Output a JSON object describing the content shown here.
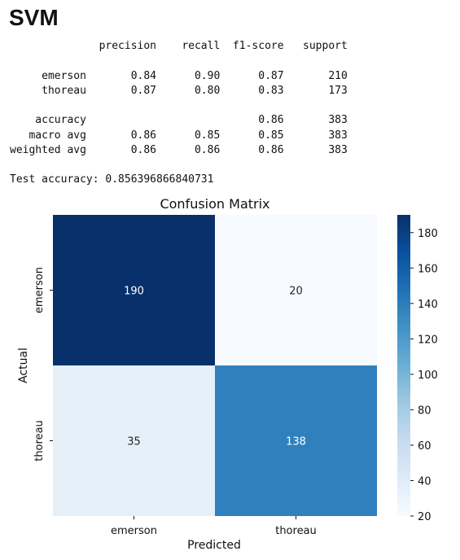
{
  "title": "SVM",
  "report": {
    "columns": [
      "precision",
      "recall",
      "f1-score",
      "support"
    ],
    "rows": [
      {
        "label": "emerson",
        "values": [
          "0.84",
          "0.90",
          "0.87",
          "210"
        ]
      },
      {
        "label": "thoreau",
        "values": [
          "0.87",
          "0.80",
          "0.83",
          "173"
        ]
      },
      {
        "label": "",
        "values": [
          "",
          "",
          "",
          ""
        ]
      },
      {
        "label": "accuracy",
        "values": [
          "",
          "",
          "0.86",
          "383"
        ]
      },
      {
        "label": "macro avg",
        "values": [
          "0.86",
          "0.85",
          "0.85",
          "383"
        ]
      },
      {
        "label": "weighted avg",
        "values": [
          "0.86",
          "0.86",
          "0.86",
          "383"
        ]
      }
    ]
  },
  "test_accuracy_text": "Test accuracy: 0.856396866840731",
  "chart_data": {
    "type": "heatmap",
    "title": "Confusion Matrix",
    "xlabel": "Predicted",
    "ylabel": "Actual",
    "x_categories": [
      "emerson",
      "thoreau"
    ],
    "y_categories": [
      "emerson",
      "thoreau"
    ],
    "values": [
      [
        190,
        20
      ],
      [
        35,
        138
      ]
    ],
    "colormap": "Blues",
    "colorbar": {
      "min": 20,
      "max": 190,
      "ticks": [
        20,
        40,
        60,
        80,
        100,
        120,
        140,
        160,
        180
      ]
    },
    "cell_text_colors": {
      "dark": "#ffffff",
      "light": "#262626"
    }
  }
}
